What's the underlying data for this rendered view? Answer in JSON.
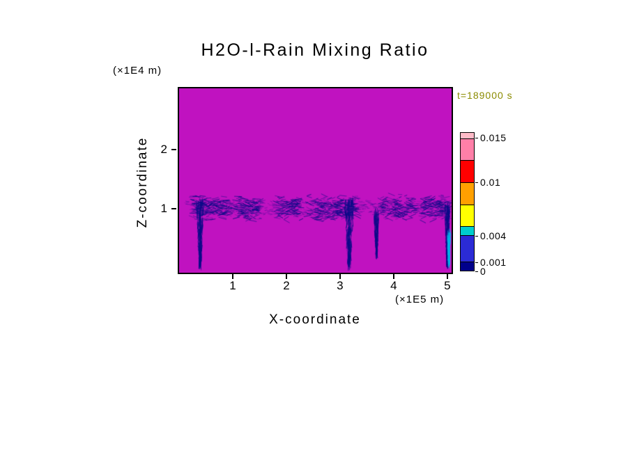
{
  "chart_data": {
    "type": "heatmap",
    "title": "H2O-l-Rain Mixing Ratio",
    "time": "t=189000 s",
    "xlabel": "X-coordinate",
    "xunit": "(×1E5 m)",
    "ylabel": "Z-coordinate",
    "yunit": "(×1E4 m)",
    "x_ticks": [
      1,
      2,
      3,
      4,
      5
    ],
    "z_ticks": [
      1,
      2
    ],
    "x_range_1e5_m": [
      0,
      5.08
    ],
    "z_range_1e4_m": [
      -0.08,
      3.04
    ],
    "grid": false,
    "legend_position": "right-colorbar",
    "background_color": "#C012C0",
    "field_color": "#0A0A87",
    "colorbar": {
      "vmax": 0.0156,
      "units": "mixing ratio",
      "segments": [
        {
          "from": 0.0,
          "to": 0.001,
          "color": "#00008B"
        },
        {
          "from": 0.001,
          "to": 0.004,
          "color": "#2B2BD5"
        },
        {
          "from": 0.004,
          "to": 0.005,
          "color": "#00CDCD"
        },
        {
          "from": 0.005,
          "to": 0.0075,
          "color": "#FFFF00"
        },
        {
          "from": 0.0075,
          "to": 0.01,
          "color": "#FFA000"
        },
        {
          "from": 0.01,
          "to": 0.0125,
          "color": "#FF0000"
        },
        {
          "from": 0.0125,
          "to": 0.015,
          "color": "#FF7FA8"
        },
        {
          "from": 0.015,
          "to": 0.0156,
          "color": "#FFBBC8"
        }
      ],
      "labeled_levels": [
        {
          "value": 0.015,
          "label": "0.015"
        },
        {
          "value": 0.01,
          "label": "0.01"
        },
        {
          "value": 0.004,
          "label": "0.004"
        },
        {
          "value": 0.001,
          "label": "0.001"
        },
        {
          "value": 0,
          "label": "0"
        }
      ]
    },
    "features": {
      "rain_band": {
        "z_center": 1.02,
        "z_half_width": 0.17,
        "x_extent": [
          0.12,
          5.05
        ],
        "segments": [
          [
            0.22,
            0.95
          ],
          [
            1.02,
            1.55
          ],
          [
            1.8,
            2.3
          ],
          [
            2.38,
            3.35
          ],
          [
            3.72,
            4.42
          ],
          [
            4.5,
            5.06
          ]
        ]
      },
      "plumes": [
        {
          "x": 0.39,
          "z_top": 1.12,
          "z_bottom": 0.02,
          "width": 0.07,
          "core": 3
        },
        {
          "x": 3.17,
          "z_top": 1.15,
          "z_bottom": 0.02,
          "width": 0.09,
          "core": 4
        },
        {
          "x": 3.68,
          "z_top": 0.95,
          "z_bottom": 0.2,
          "width": 0.05,
          "core": 1
        },
        {
          "x": 5.0,
          "z_top": 1.05,
          "z_bottom": 0.05,
          "width": 0.05,
          "core": 2
        },
        {
          "x": 5.03,
          "z_top": 0.6,
          "z_bottom": 0.05,
          "width": 0.035,
          "core": 2,
          "color": "#00B4E6"
        }
      ]
    }
  }
}
